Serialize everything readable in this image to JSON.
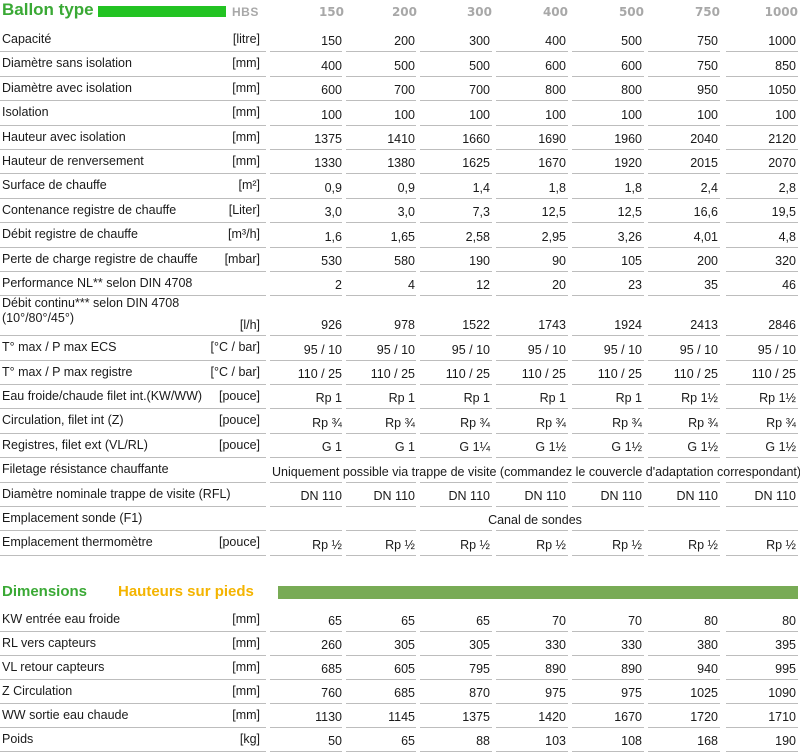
{
  "header": {
    "title": "Ballon type",
    "model": "HBS",
    "capacities": [
      "150",
      "200",
      "300",
      "400",
      "500",
      "750",
      "1000"
    ]
  },
  "rows": [
    {
      "label": "Capacité",
      "unit": "[litre]",
      "values": [
        "150",
        "200",
        "300",
        "400",
        "500",
        "750",
        "1000"
      ]
    },
    {
      "label": "Diamètre sans isolation",
      "unit": "[mm]",
      "values": [
        "400",
        "500",
        "500",
        "600",
        "600",
        "750",
        "850"
      ]
    },
    {
      "label": "Diamètre avec isolation",
      "unit": "[mm]",
      "values": [
        "600",
        "700",
        "700",
        "800",
        "800",
        "950",
        "1050"
      ]
    },
    {
      "label": "Isolation",
      "unit": "[mm]",
      "values": [
        "100",
        "100",
        "100",
        "100",
        "100",
        "100",
        "100"
      ]
    },
    {
      "label": "Hauteur avec isolation",
      "unit": "[mm]",
      "values": [
        "1375",
        "1410",
        "1660",
        "1690",
        "1960",
        "2040",
        "2120"
      ]
    },
    {
      "label": "Hauteur de renversement",
      "unit": "[mm]",
      "values": [
        "1330",
        "1380",
        "1625",
        "1670",
        "1920",
        "2015",
        "2070"
      ]
    },
    {
      "label": "Surface de chauffe",
      "unit": "[m²]",
      "values": [
        "0,9",
        "0,9",
        "1,4",
        "1,8",
        "1,8",
        "2,4",
        "2,8"
      ]
    },
    {
      "label": "Contenance registre de chauffe",
      "unit": "[Liter]",
      "values": [
        "3,0",
        "3,0",
        "7,3",
        "12,5",
        "12,5",
        "16,6",
        "19,5"
      ]
    },
    {
      "label": "Débit registre de chauffe",
      "unit": "[m³/h]",
      "values": [
        "1,6",
        "1,65",
        "2,58",
        "2,95",
        "3,26",
        "4,01",
        "4,8"
      ]
    },
    {
      "label": "Perte de charge registre de chauffe",
      "unit": "[mbar]",
      "values": [
        "530",
        "580",
        "190",
        "90",
        "105",
        "200",
        "320"
      ]
    },
    {
      "label": "Performance NL** selon DIN 4708",
      "unit": "",
      "values": [
        "2",
        "4",
        "12",
        "20",
        "23",
        "35",
        "46"
      ]
    },
    {
      "label": "Débit continu*** selon DIN 4708",
      "label2": "(10°/80°/45°)",
      "unit": "[l/h]",
      "values": [
        "926",
        "978",
        "1522",
        "1743",
        "1924",
        "2413",
        "2846"
      ]
    },
    {
      "label": "T° max / P max ECS",
      "unit": "[°C / bar]",
      "values": [
        "95 / 10",
        "95 / 10",
        "95 / 10",
        "95 / 10",
        "95 / 10",
        "95 / 10",
        "95 / 10"
      ]
    },
    {
      "label": "T° max / P max registre",
      "unit": "[°C / bar]",
      "values": [
        "110 / 25",
        "110 / 25",
        "110 / 25",
        "110 / 25",
        "110 / 25",
        "110 / 25",
        "110 / 25"
      ]
    },
    {
      "label": "Eau froide/chaude filet int.(KW/WW)",
      "unit": "[pouce]",
      "values": [
        "Rp 1",
        "Rp 1",
        "Rp 1",
        "Rp 1",
        "Rp 1",
        "Rp 1½",
        "Rp 1½"
      ]
    },
    {
      "label": "Circulation, filet int (Z)",
      "unit": "[pouce]",
      "values": [
        "Rp ¾",
        "Rp ¾",
        "Rp ¾",
        "Rp ¾",
        "Rp ¾",
        "Rp ¾",
        "Rp ¾"
      ]
    },
    {
      "label": "Registres, filet ext (VL/RL)",
      "unit": "[pouce]",
      "values": [
        "G 1",
        "G 1",
        "G 1¼",
        "G 1½",
        "G 1½",
        "G 1½",
        "G 1½"
      ]
    },
    {
      "label": "Filetage résistance chauffante",
      "unit": "",
      "span": "Uniquement possible via trappe de visite (commandez le couvercle d'adaptation correspondant)"
    },
    {
      "label": "Diamètre nominale trappe de visite (RFL)",
      "unit": "",
      "values": [
        "DN 110",
        "DN 110",
        "DN 110",
        "DN 110",
        "DN 110",
        "DN 110",
        "DN 110"
      ]
    },
    {
      "label": "Emplacement sonde (F1)",
      "unit": "",
      "span": "Canal de sondes"
    },
    {
      "label": "Emplacement thermomètre",
      "unit": "[pouce]",
      "values": [
        "Rp ½",
        "Rp ½",
        "Rp ½",
        "Rp ½",
        "Rp ½",
        "Rp ½",
        "Rp ½"
      ]
    }
  ],
  "section2": {
    "title": "Dimensions",
    "subtitle": "Hauteurs sur pieds",
    "rows": [
      {
        "label": "KW entrée eau froide",
        "unit": "[mm]",
        "values": [
          "65",
          "65",
          "65",
          "70",
          "70",
          "80",
          "80"
        ]
      },
      {
        "label": "RL vers capteurs",
        "unit": "[mm]",
        "values": [
          "260",
          "305",
          "305",
          "330",
          "330",
          "380",
          "395"
        ]
      },
      {
        "label": "VL retour capteurs",
        "unit": "[mm]",
        "values": [
          "685",
          "605",
          "795",
          "890",
          "890",
          "940",
          "995"
        ]
      },
      {
        "label": "Z Circulation",
        "unit": "[mm]",
        "values": [
          "760",
          "685",
          "870",
          "975",
          "975",
          "1025",
          "1090"
        ]
      },
      {
        "label": "WW sortie eau chaude",
        "unit": "[mm]",
        "values": [
          "1130",
          "1145",
          "1375",
          "1420",
          "1670",
          "1720",
          "1710"
        ]
      },
      {
        "label": "Poids",
        "unit": "[kg]",
        "values": [
          "50",
          "65",
          "88",
          "103",
          "108",
          "168",
          "190"
        ]
      }
    ]
  },
  "colors": {
    "green": "#3aa935",
    "bar_green": "#22c322",
    "orange": "#f4b400",
    "olive_bar": "#78ab55",
    "rule": "#bdbdbd"
  }
}
